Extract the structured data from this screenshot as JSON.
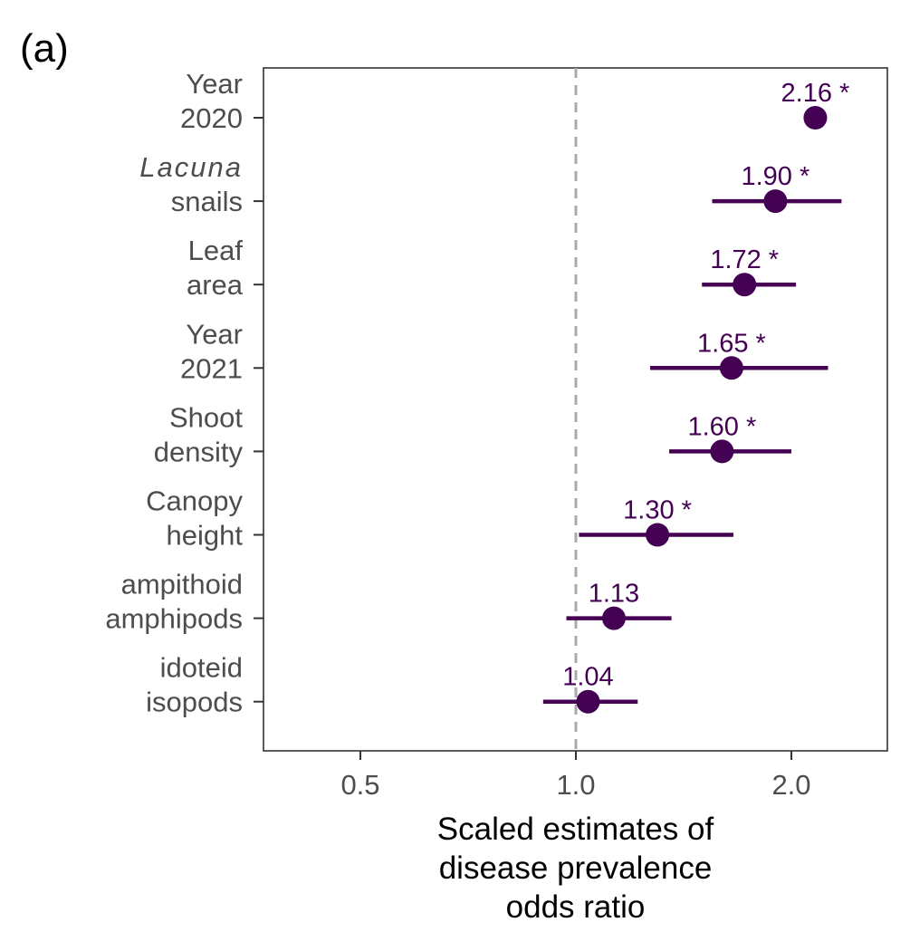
{
  "panel_label": "(a)",
  "colors": {
    "accent": "#440154",
    "reference_line": "#aaaaaa",
    "axis_text": "#4d4d4d",
    "panel_border": "#333333"
  },
  "chart_data": {
    "type": "scatter",
    "subtype": "forest-plot",
    "x_scale": "log",
    "xlim": [
      0.3,
      2.6
    ],
    "xticks": [
      0.5,
      1.0,
      2.0
    ],
    "xtick_labels": [
      "0.5",
      "1.0",
      "2.0"
    ],
    "reference_line": 1.0,
    "xlabel_lines": [
      "Scaled estimates of",
      "disease prevalence",
      "odds ratio"
    ],
    "ylabel": "",
    "grid": false,
    "legend": "none",
    "items": [
      {
        "label_lines": [
          "Year",
          "2020"
        ],
        "italic_first": false,
        "estimate": 2.16,
        "lower": 2.16,
        "upper": 2.16,
        "label": "2.16 *"
      },
      {
        "label_lines": [
          "Lacuna",
          "snails"
        ],
        "italic_first": true,
        "estimate": 1.9,
        "lower": 1.55,
        "upper": 2.35,
        "label": "1.90 *"
      },
      {
        "label_lines": [
          "Leaf",
          "area"
        ],
        "italic_first": false,
        "estimate": 1.72,
        "lower": 1.5,
        "upper": 2.03,
        "label": "1.72 *"
      },
      {
        "label_lines": [
          "Year",
          "2021"
        ],
        "italic_first": false,
        "estimate": 1.65,
        "lower": 1.27,
        "upper": 2.25,
        "label": "1.65 *"
      },
      {
        "label_lines": [
          "Shoot",
          "density"
        ],
        "italic_first": false,
        "estimate": 1.6,
        "lower": 1.35,
        "upper": 2.0,
        "label": "1.60 *"
      },
      {
        "label_lines": [
          "Canopy",
          "height"
        ],
        "italic_first": false,
        "estimate": 1.3,
        "lower": 1.01,
        "upper": 1.66,
        "label": "1.30 *"
      },
      {
        "label_lines": [
          "ampithoid",
          "amphipods"
        ],
        "italic_first": false,
        "estimate": 1.13,
        "lower": 0.97,
        "upper": 1.36,
        "label": "1.13"
      },
      {
        "label_lines": [
          "idoteid",
          "isopods"
        ],
        "italic_first": false,
        "estimate": 1.04,
        "lower": 0.9,
        "upper": 1.22,
        "label": "1.04"
      }
    ]
  }
}
